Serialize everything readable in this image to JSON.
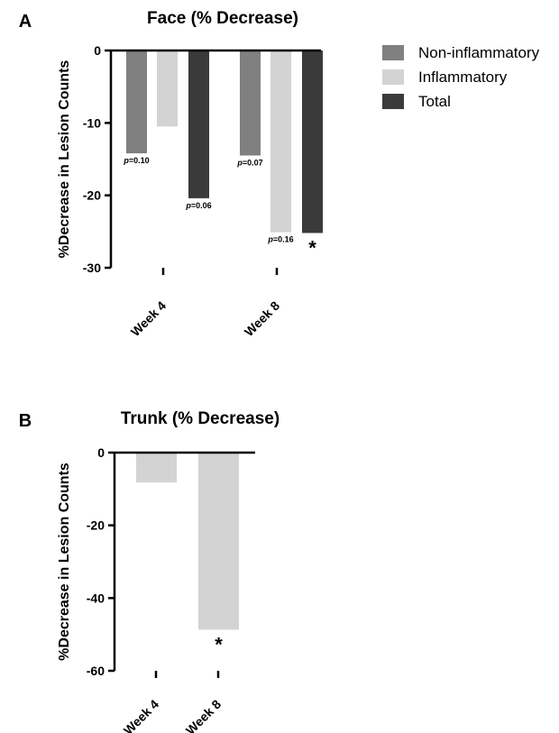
{
  "chart_data": [
    {
      "panel": "A",
      "type": "bar",
      "title": "Face (% Decrease)",
      "ylabel": "%Decrease in Lesion Counts",
      "xlabel": "",
      "ylim": [
        -30,
        0
      ],
      "yticks": [
        0,
        -10,
        -20,
        -30
      ],
      "categories": [
        "Week 4",
        "Week 8"
      ],
      "series": [
        {
          "name": "Non-inflammatory",
          "color": "#808080",
          "values": [
            -14.2,
            -14.5
          ]
        },
        {
          "name": "Inflammatory",
          "color": "#d3d3d3",
          "values": [
            -10.5,
            -25.1
          ]
        },
        {
          "name": "Total",
          "color": "#3a3a3a",
          "values": [
            -20.4,
            -25.2
          ]
        }
      ],
      "annotations": [
        {
          "category": 0,
          "series": 0,
          "p": "p",
          "text": "=0.10"
        },
        {
          "category": 0,
          "series": 2,
          "p": "p",
          "text": "=0.06"
        },
        {
          "category": 1,
          "series": 0,
          "p": "p",
          "text": "=0.07"
        },
        {
          "category": 1,
          "series": 1,
          "p": "p",
          "text": "=0.16"
        },
        {
          "category": 1,
          "series": 2,
          "star": "*"
        }
      ],
      "legend": "top-right",
      "grid": false
    },
    {
      "panel": "B",
      "type": "bar",
      "title": "Trunk (% Decrease)",
      "ylabel": "%Decrease in Lesion Counts",
      "xlabel": "",
      "ylim": [
        -60,
        0
      ],
      "yticks": [
        0,
        -20,
        -40,
        -60
      ],
      "categories": [
        "Week 4",
        "Week 8"
      ],
      "series": [
        {
          "name": "Inflammatory",
          "color": "#d3d3d3",
          "values": [
            -8.2,
            -48.7
          ]
        }
      ],
      "annotations": [
        {
          "category": 1,
          "series": 0,
          "star": "*"
        }
      ],
      "grid": false
    }
  ]
}
